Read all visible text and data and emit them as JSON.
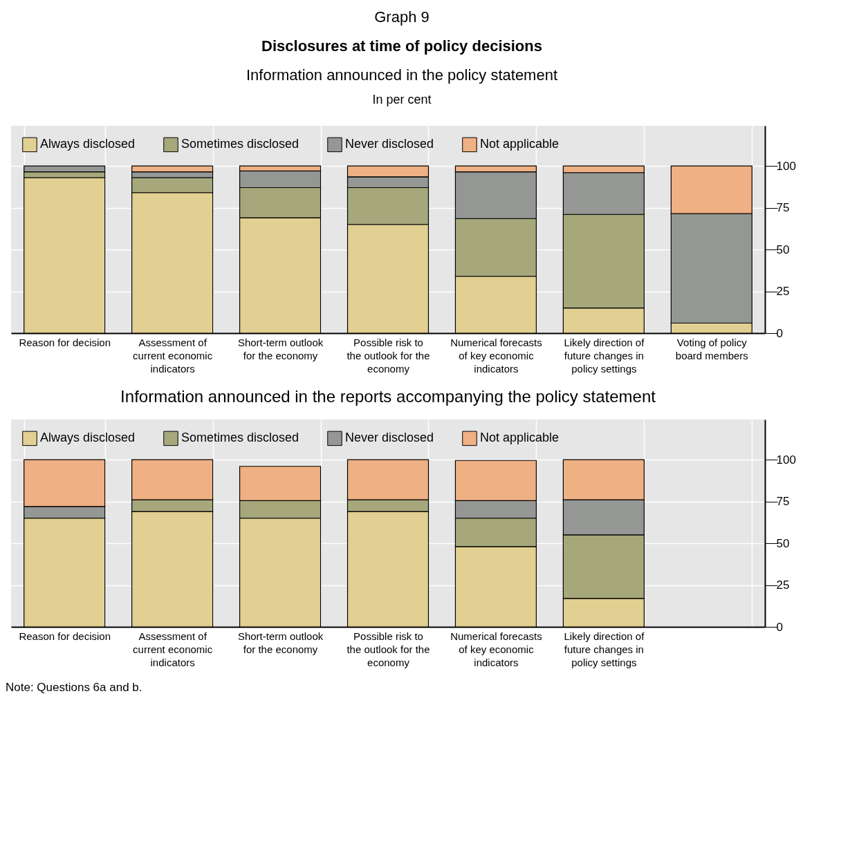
{
  "chart_data": [
    {
      "type": "bar",
      "stacked": true,
      "title": "Disclosures at time of policy decisions",
      "subtitle": "Information announced in the policy statement",
      "annotations": [
        "Graph 9",
        "In per cent"
      ],
      "categories": [
        "Reason for decision",
        "Assessment of current economic indicators",
        "Short-term outlook for the economy",
        "Possible risk to the outlook for the economy",
        "Numerical forecasts of key economic indicators",
        "Likely direction of future changes in policy settings",
        "Voting of policy board members"
      ],
      "series": [
        {
          "name": "Always disclosed",
          "color": "#e2cf92",
          "values": [
            93,
            84,
            69,
            65,
            34,
            15,
            6
          ]
        },
        {
          "name": "Sometimes disclosed",
          "color": "#a6a87c",
          "values": [
            3.5,
            9,
            18,
            22,
            34.5,
            56,
            0
          ]
        },
        {
          "name": "Never disclosed",
          "color": "#959794",
          "values": [
            3.5,
            3.5,
            10,
            6.5,
            28,
            25,
            65.5
          ]
        },
        {
          "name": "Not applicable",
          "color": "#efb083",
          "values": [
            0,
            3.5,
            3,
            6.5,
            3.5,
            4,
            28.5
          ]
        }
      ],
      "ylim": [
        0,
        124
      ],
      "yticks": [
        0,
        25,
        50,
        75,
        100
      ],
      "grid": true,
      "legend": "top left"
    },
    {
      "type": "bar",
      "stacked": true,
      "title": "Information announced in the reports accompanying the policy statement",
      "annotations": [
        "Note: Questions 6a and b."
      ],
      "categories": [
        "Reason for decision",
        "Assessment of current economic indicators",
        "Short-term outlook for the economy",
        "Possible risk to the outlook for the economy",
        "Numerical forecasts of key economic indicators",
        "Likely direction of future changes in policy settings",
        null
      ],
      "series": [
        {
          "name": "Always disclosed",
          "color": "#e2cf92",
          "values": [
            65,
            69,
            65,
            69,
            48,
            17,
            null
          ]
        },
        {
          "name": "Sometimes disclosed",
          "color": "#a6a87c",
          "values": [
            0,
            7,
            10.5,
            7,
            17,
            38,
            null
          ]
        },
        {
          "name": "Never disclosed",
          "color": "#959794",
          "values": [
            7,
            0,
            0,
            0,
            10.5,
            21,
            null
          ]
        },
        {
          "name": "Not applicable",
          "color": "#efb083",
          "values": [
            28,
            24,
            20.5,
            24,
            24,
            24,
            null
          ]
        }
      ],
      "ylim": [
        0,
        124
      ],
      "yticks": [
        0,
        25,
        50,
        75,
        100
      ],
      "grid": true,
      "legend": "top left"
    }
  ]
}
